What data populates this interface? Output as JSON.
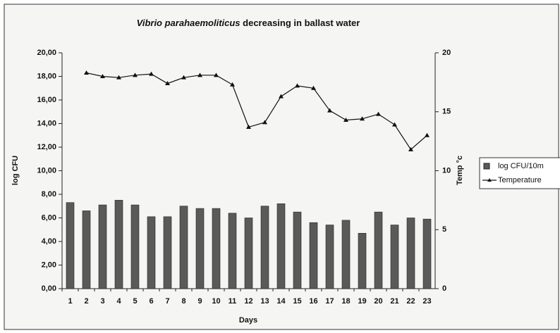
{
  "chart_data": {
    "type": "bar_line",
    "title": {
      "species": "Vibrio parahaemoliticus",
      "text": " decreasing in ballast water"
    },
    "x_label": "Days",
    "y_label": "log CFU",
    "y2_label": "Temp °c",
    "categories": [
      "1",
      "2",
      "3",
      "4",
      "5",
      "6",
      "7",
      "8",
      "9",
      "10",
      "11",
      "12",
      "13",
      "14",
      "15",
      "16",
      "17",
      "18",
      "19",
      "20",
      "21",
      "22",
      "23"
    ],
    "series": [
      {
        "name": "log CFU/10m",
        "type": "bar",
        "color": "#5a5a5a",
        "values": [
          7.3,
          6.6,
          7.1,
          7.5,
          7.1,
          6.1,
          6.1,
          7.0,
          6.8,
          6.8,
          6.4,
          6.0,
          7.0,
          7.2,
          6.5,
          5.6,
          5.4,
          5.8,
          4.7,
          6.5,
          5.4,
          6.0,
          5.9
        ]
      },
      {
        "name": "Temperature",
        "type": "line",
        "axis": "y2",
        "color": "#111111",
        "values": [
          null,
          18.3,
          18.0,
          17.9,
          18.1,
          18.2,
          17.4,
          17.9,
          18.1,
          18.1,
          17.3,
          13.7,
          14.1,
          16.3,
          17.2,
          17.0,
          15.1,
          14.3,
          14.4,
          14.8,
          13.9,
          11.8,
          13.0
        ]
      }
    ],
    "ylim": [
      0,
      20
    ],
    "yticks": [
      {
        "value": 0,
        "label": "0,00"
      },
      {
        "value": 2,
        "label": "2,00"
      },
      {
        "value": 4,
        "label": "4,00"
      },
      {
        "value": 6,
        "label": "6,00"
      },
      {
        "value": 8,
        "label": "8,00"
      },
      {
        "value": 10,
        "label": "10,00"
      },
      {
        "value": 12,
        "label": "12,00"
      },
      {
        "value": 14,
        "label": "14,00"
      },
      {
        "value": 16,
        "label": "16,00"
      },
      {
        "value": 18,
        "label": "18,00"
      },
      {
        "value": 20,
        "label": "20,00"
      }
    ],
    "y2lim": [
      0,
      20
    ],
    "y2ticks": [
      0,
      5,
      10,
      15,
      20
    ],
    "legend": "right"
  }
}
